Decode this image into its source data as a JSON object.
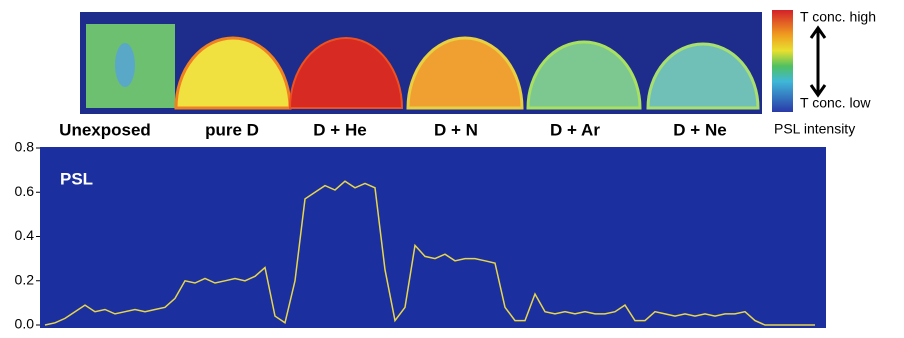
{
  "image_strip": {
    "samples": [
      "Unexposed",
      "pure D",
      "D + He",
      "D + N",
      "D + Ar",
      "D + Ne"
    ],
    "colorbar": {
      "high": "T conc. high",
      "low": "T conc. low",
      "label": "PSL intensity"
    }
  },
  "chart_data": {
    "type": "line",
    "annotation": "PSL",
    "color": "#e6d64c",
    "values": [
      0.0,
      0.01,
      0.03,
      0.06,
      0.09,
      0.06,
      0.07,
      0.05,
      0.06,
      0.07,
      0.06,
      0.07,
      0.08,
      0.12,
      0.2,
      0.19,
      0.21,
      0.19,
      0.2,
      0.21,
      0.2,
      0.22,
      0.26,
      0.04,
      0.01,
      0.2,
      0.57,
      0.6,
      0.63,
      0.61,
      0.65,
      0.62,
      0.64,
      0.62,
      0.25,
      0.02,
      0.08,
      0.36,
      0.31,
      0.3,
      0.32,
      0.29,
      0.3,
      0.3,
      0.29,
      0.28,
      0.08,
      0.02,
      0.02,
      0.14,
      0.06,
      0.05,
      0.06,
      0.05,
      0.06,
      0.05,
      0.05,
      0.06,
      0.09,
      0.02,
      0.02,
      0.06,
      0.05,
      0.04,
      0.05,
      0.04,
      0.05,
      0.04,
      0.05,
      0.05,
      0.06,
      0.02,
      0.0,
      0.0,
      0.0,
      0.0,
      0.0,
      0.0
    ],
    "ylim": [
      0,
      0.8
    ],
    "yticks": [
      {
        "value": 0,
        "label": "0.0"
      },
      0.2,
      0.4,
      0.6,
      0.8
    ]
  }
}
